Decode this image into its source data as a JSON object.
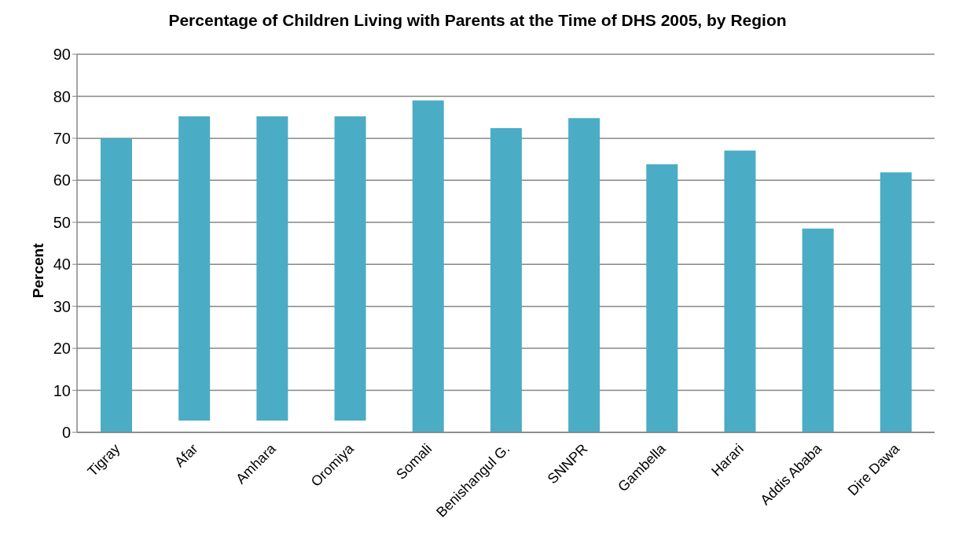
{
  "chart_data": {
    "type": "bar",
    "title": "Percentage of Children Living with Parents at the Time of DHS 2005, by Region",
    "ylabel": "Percent",
    "categories": [
      "Tigray",
      "Afar",
      "Amhara",
      "Oromiya",
      "Somali",
      "Benishangul G.",
      "SNNPR",
      "Gambella",
      "Harari",
      "Addis Ababa",
      "Dire Dawa"
    ],
    "values": [
      70.0,
      72.4,
      72.4,
      72.4,
      79.0,
      72.4,
      74.8,
      63.8,
      67.1,
      48.5,
      61.9
    ],
    "base": [
      0,
      2.8,
      2.8,
      2.8,
      0,
      0,
      0,
      0,
      0,
      0,
      0
    ],
    "color": "#4bacc6",
    "ylim": [
      0,
      90
    ],
    "yticks": [
      0,
      10,
      20,
      30,
      40,
      50,
      60,
      70,
      80,
      90
    ],
    "grid": "y"
  }
}
